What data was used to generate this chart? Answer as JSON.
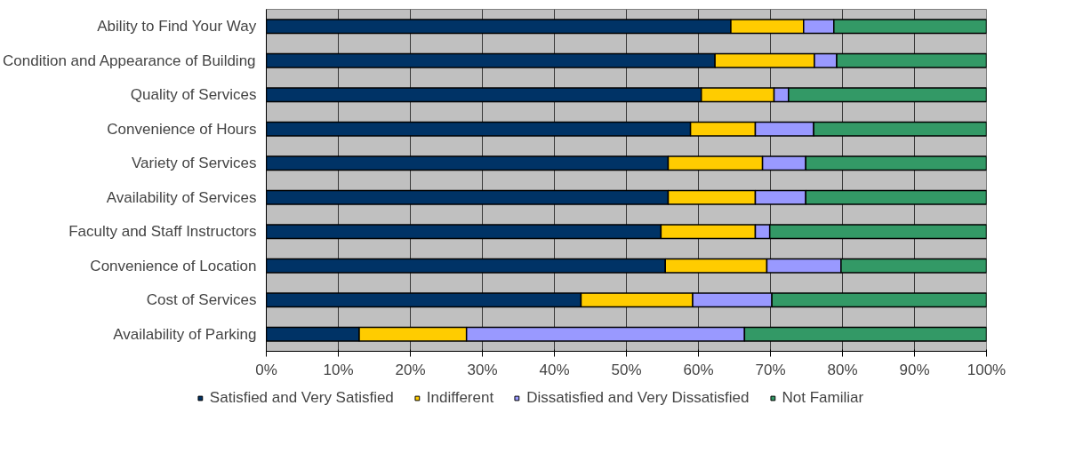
{
  "chart_data": {
    "type": "bar",
    "orientation": "horizontal",
    "stacked": true,
    "categories": [
      "Ability to Find Your Way",
      "Condition and Appearance of Building",
      "Quality of Services",
      "Convenience of Hours",
      "Variety of Services",
      "Availability of Services",
      "Faculty and Staff Instructors",
      "Convenience of Location",
      "Cost of Services",
      "Availability of Parking"
    ],
    "series": [
      {
        "name": "Satisfied and Very Satisfied",
        "color": "#003366",
        "values": [
          64.5,
          62.3,
          60.4,
          58.9,
          55.8,
          55.8,
          54.8,
          55.4,
          43.7,
          12.9
        ]
      },
      {
        "name": "Indifferent",
        "color": "#ffcc00",
        "values": [
          10.1,
          13.8,
          10.1,
          9.0,
          13.1,
          12.1,
          13.1,
          14.1,
          15.5,
          14.9
        ]
      },
      {
        "name": "Dissatisfied and Very Dissatisfied",
        "color": "#9999ff",
        "values": [
          4.2,
          3.1,
          2.0,
          8.1,
          6.0,
          7.0,
          2.0,
          10.3,
          11.0,
          38.6
        ]
      },
      {
        "name": "Not Familiar",
        "color": "#339966",
        "values": [
          21.2,
          20.8,
          27.5,
          24.0,
          25.1,
          25.1,
          30.1,
          20.2,
          29.8,
          33.6
        ]
      }
    ],
    "xlim": [
      0,
      100
    ],
    "xticks": [
      {
        "value": 0,
        "label": "0%"
      },
      {
        "value": 10,
        "label": "10%"
      },
      {
        "value": 20,
        "label": "20%"
      },
      {
        "value": 30,
        "label": "30%"
      },
      {
        "value": 40,
        "label": "40%"
      },
      {
        "value": 50,
        "label": "50%"
      },
      {
        "value": 60,
        "label": "60%"
      },
      {
        "value": 70,
        "label": "70%"
      },
      {
        "value": 80,
        "label": "80%"
      },
      {
        "value": 90,
        "label": "90%"
      },
      {
        "value": 100,
        "label": "100%"
      }
    ],
    "grid": "x",
    "legend": "bottom"
  }
}
